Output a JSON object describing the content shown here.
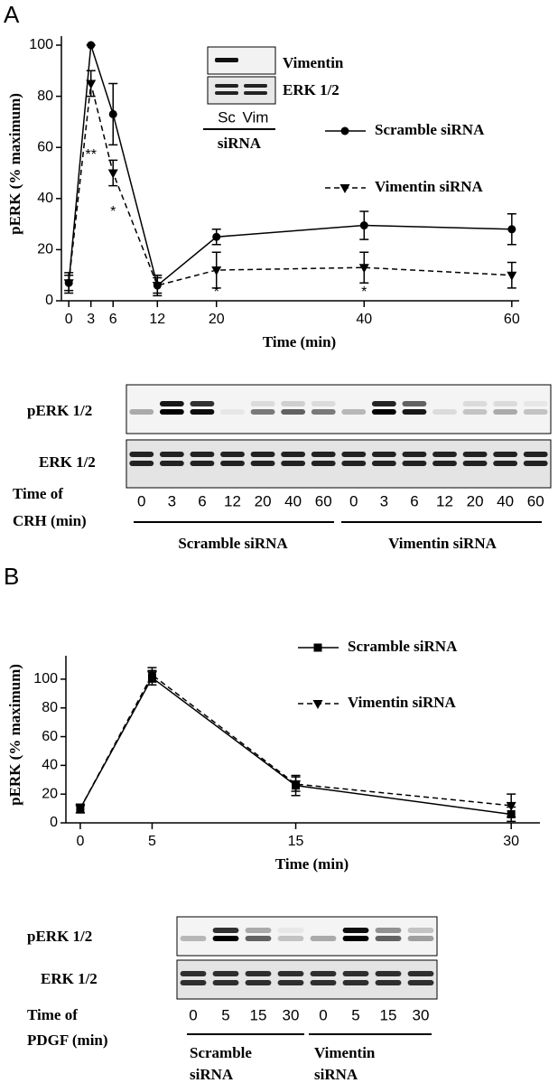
{
  "panels": [
    "A",
    "B"
  ],
  "chart_data": [
    {
      "type": "line",
      "xlabel": "Time (min)",
      "ylabel": "pERK (% maximum)",
      "x": [
        0,
        3,
        6,
        12,
        20,
        40,
        60
      ],
      "xlim": [
        -1,
        61
      ],
      "xticks": [
        0,
        3,
        6,
        12,
        20,
        40,
        60
      ],
      "ylim": [
        0,
        100
      ],
      "yticks": [
        0,
        20,
        40,
        60,
        80,
        100
      ],
      "series": [
        {
          "name": "Scramble siRNA",
          "color": "#000000",
          "marker": "circle",
          "linestyle": "solid",
          "values": [
            7,
            100,
            73,
            6,
            25,
            29.5,
            28
          ],
          "errors": [
            3,
            0,
            12,
            3,
            3,
            5.5,
            6
          ]
        },
        {
          "name": "Vimentin siRNA",
          "color": "#000000",
          "marker": "triangle-down",
          "linestyle": "dashed",
          "values": [
            7,
            85,
            50,
            6,
            12,
            13,
            10
          ],
          "errors": [
            4,
            5,
            5,
            4,
            7,
            6,
            5
          ]
        }
      ],
      "annotations": [
        "**",
        "*",
        "*",
        "*"
      ]
    },
    {
      "type": "line",
      "xlabel": "Time (min)",
      "ylabel": "pERK (% maximum)",
      "x": [
        0,
        5,
        15,
        30
      ],
      "xlim": [
        -1,
        32
      ],
      "xticks": [
        0,
        5,
        15,
        30
      ],
      "ylim": [
        0,
        110
      ],
      "yticks": [
        0,
        20,
        40,
        60,
        80,
        100
      ],
      "series": [
        {
          "name": "Scramble siRNA",
          "color": "#000000",
          "marker": "square",
          "linestyle": "solid",
          "values": [
            10,
            101,
            26,
            6
          ],
          "errors": [
            3,
            5,
            7,
            5
          ]
        },
        {
          "name": "Vimentin siRNA",
          "color": "#000000",
          "marker": "triangle-down",
          "linestyle": "dashed",
          "values": [
            10,
            103,
            27,
            12
          ],
          "errors": [
            3,
            5,
            5,
            8
          ]
        }
      ]
    }
  ],
  "inset": {
    "rows": [
      "Vimentin",
      "ERK 1/2"
    ],
    "lanes": [
      "Sc",
      "Vim"
    ],
    "group": "siRNA"
  },
  "blot_a": {
    "rows": [
      "pERK 1/2",
      "ERK 1/2"
    ],
    "time_label": [
      "Time of",
      "CRH (min)"
    ],
    "lanes": [
      "0",
      "3",
      "6",
      "12",
      "20",
      "40",
      "60",
      "0",
      "3",
      "6",
      "12",
      "20",
      "40",
      "60"
    ],
    "groups": [
      "Scramble siRNA",
      "Vimentin siRNA"
    ]
  },
  "blot_b": {
    "rows": [
      "pERK 1/2",
      "ERK 1/2"
    ],
    "time_label": [
      "Time of",
      "PDGF (min)"
    ],
    "lanes": [
      "0",
      "5",
      "15",
      "30",
      "0",
      "5",
      "15",
      "30"
    ],
    "groups": [
      [
        "Scramble",
        "siRNA"
      ],
      [
        "Vimentin",
        "siRNA"
      ]
    ]
  }
}
